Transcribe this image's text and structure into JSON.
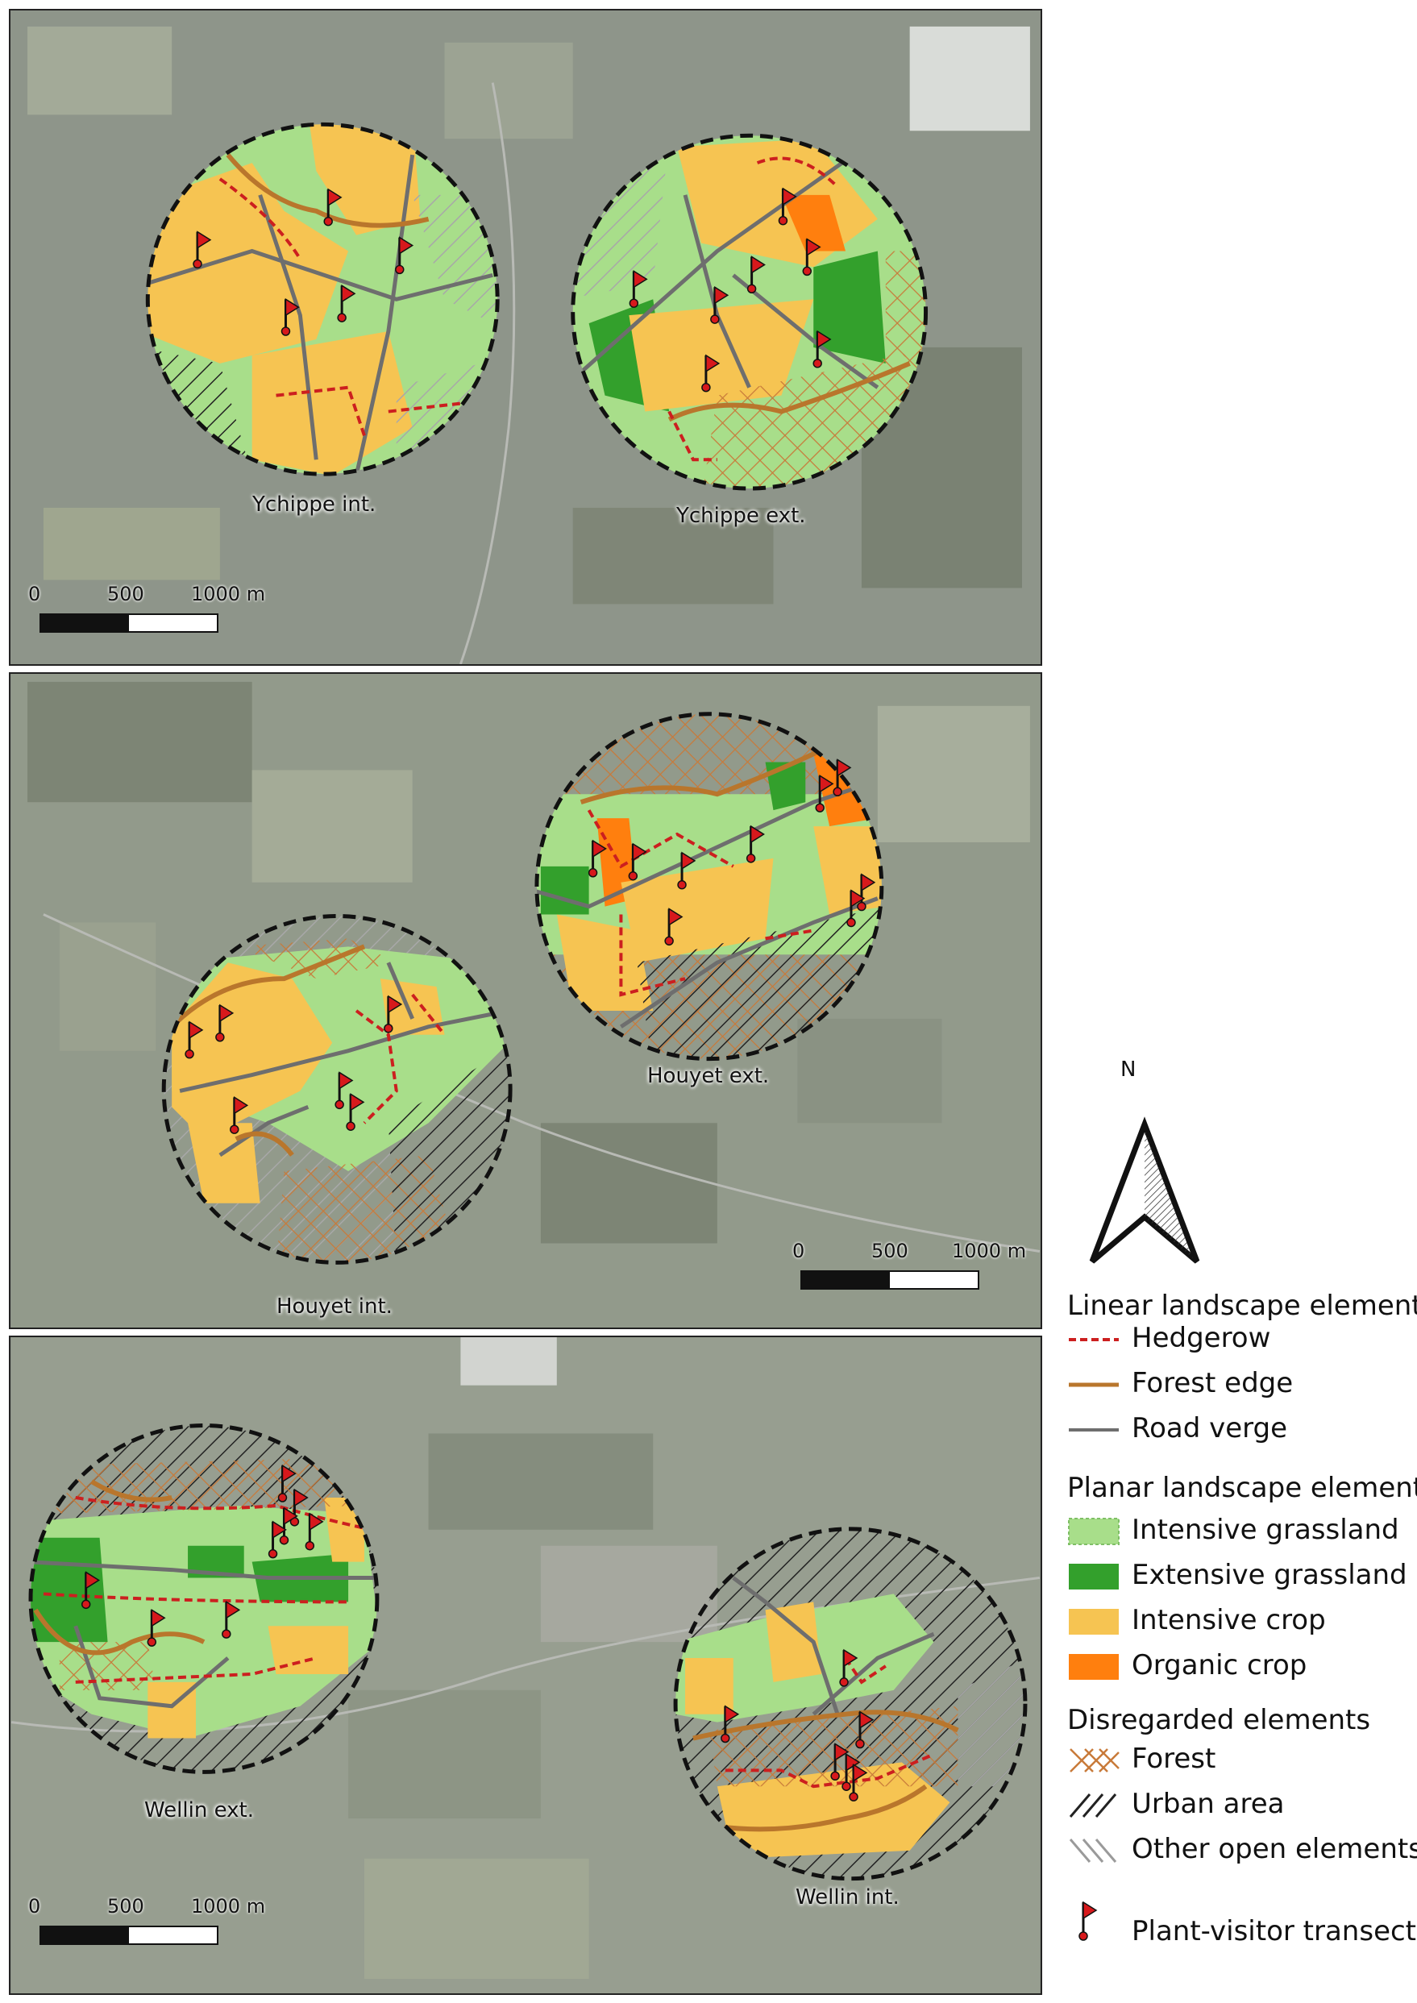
{
  "panels": [
    {
      "id": "ychippe",
      "sites": [
        {
          "label": "Ychippe int."
        },
        {
          "label": "Ychippe ext."
        }
      ],
      "scale_ticks": [
        "0",
        "500",
        "1000 m"
      ]
    },
    {
      "id": "houyet",
      "sites": [
        {
          "label": "Houyet ext."
        },
        {
          "label": "Houyet int."
        }
      ],
      "scale_ticks": [
        "0",
        "500",
        "1000 m"
      ]
    },
    {
      "id": "wellin",
      "sites": [
        {
          "label": "Wellin ext."
        },
        {
          "label": "Wellin int."
        }
      ],
      "scale_ticks": [
        "0",
        "500",
        "1000 m"
      ]
    }
  ],
  "legend": {
    "north_label": "N",
    "sections": [
      {
        "heading": "Linear landscape element",
        "items": [
          {
            "label": "Hedgerow",
            "symbol": "dashed-line",
            "color": "#cc1f1f"
          },
          {
            "label": "Forest edge",
            "symbol": "solid-line",
            "color": "#b9762c"
          },
          {
            "label": "Road verge",
            "symbol": "solid-line",
            "color": "#6e6e6e"
          }
        ]
      },
      {
        "heading": "Planar landscape element",
        "items": [
          {
            "label": "Intensive grassland",
            "symbol": "fill",
            "color": "#a8de8a"
          },
          {
            "label": "Extensive grassland",
            "symbol": "fill",
            "color": "#33a02c"
          },
          {
            "label": "Intensive crop",
            "symbol": "fill",
            "color": "#f6c452"
          },
          {
            "label": "Organic crop",
            "symbol": "fill",
            "color": "#ff7f0e"
          }
        ]
      },
      {
        "heading": "Disregarded elements",
        "items": [
          {
            "label": "Forest",
            "symbol": "crosshatch",
            "color": "#c87a3a"
          },
          {
            "label": "Urban area",
            "symbol": "diagonal-hatch",
            "color": "#222222"
          },
          {
            "label": "Other open elements",
            "symbol": "diagonal-hatch-light",
            "color": "#9a9a9a"
          }
        ]
      },
      {
        "heading": "",
        "items": [
          {
            "label": "Plant-visitor transects",
            "symbol": "flag",
            "color": "#d7191c"
          }
        ]
      }
    ]
  },
  "colors": {
    "hedgerow": "#cc1f1f",
    "forest_edge": "#b9762c",
    "road_verge": "#6e6e6e",
    "intensive_grassland": "#a8de8a",
    "extensive_grassland": "#33a02c",
    "intensive_crop": "#f6c452",
    "organic_crop": "#ff7f0e",
    "aerial_background": "#8e958a"
  }
}
